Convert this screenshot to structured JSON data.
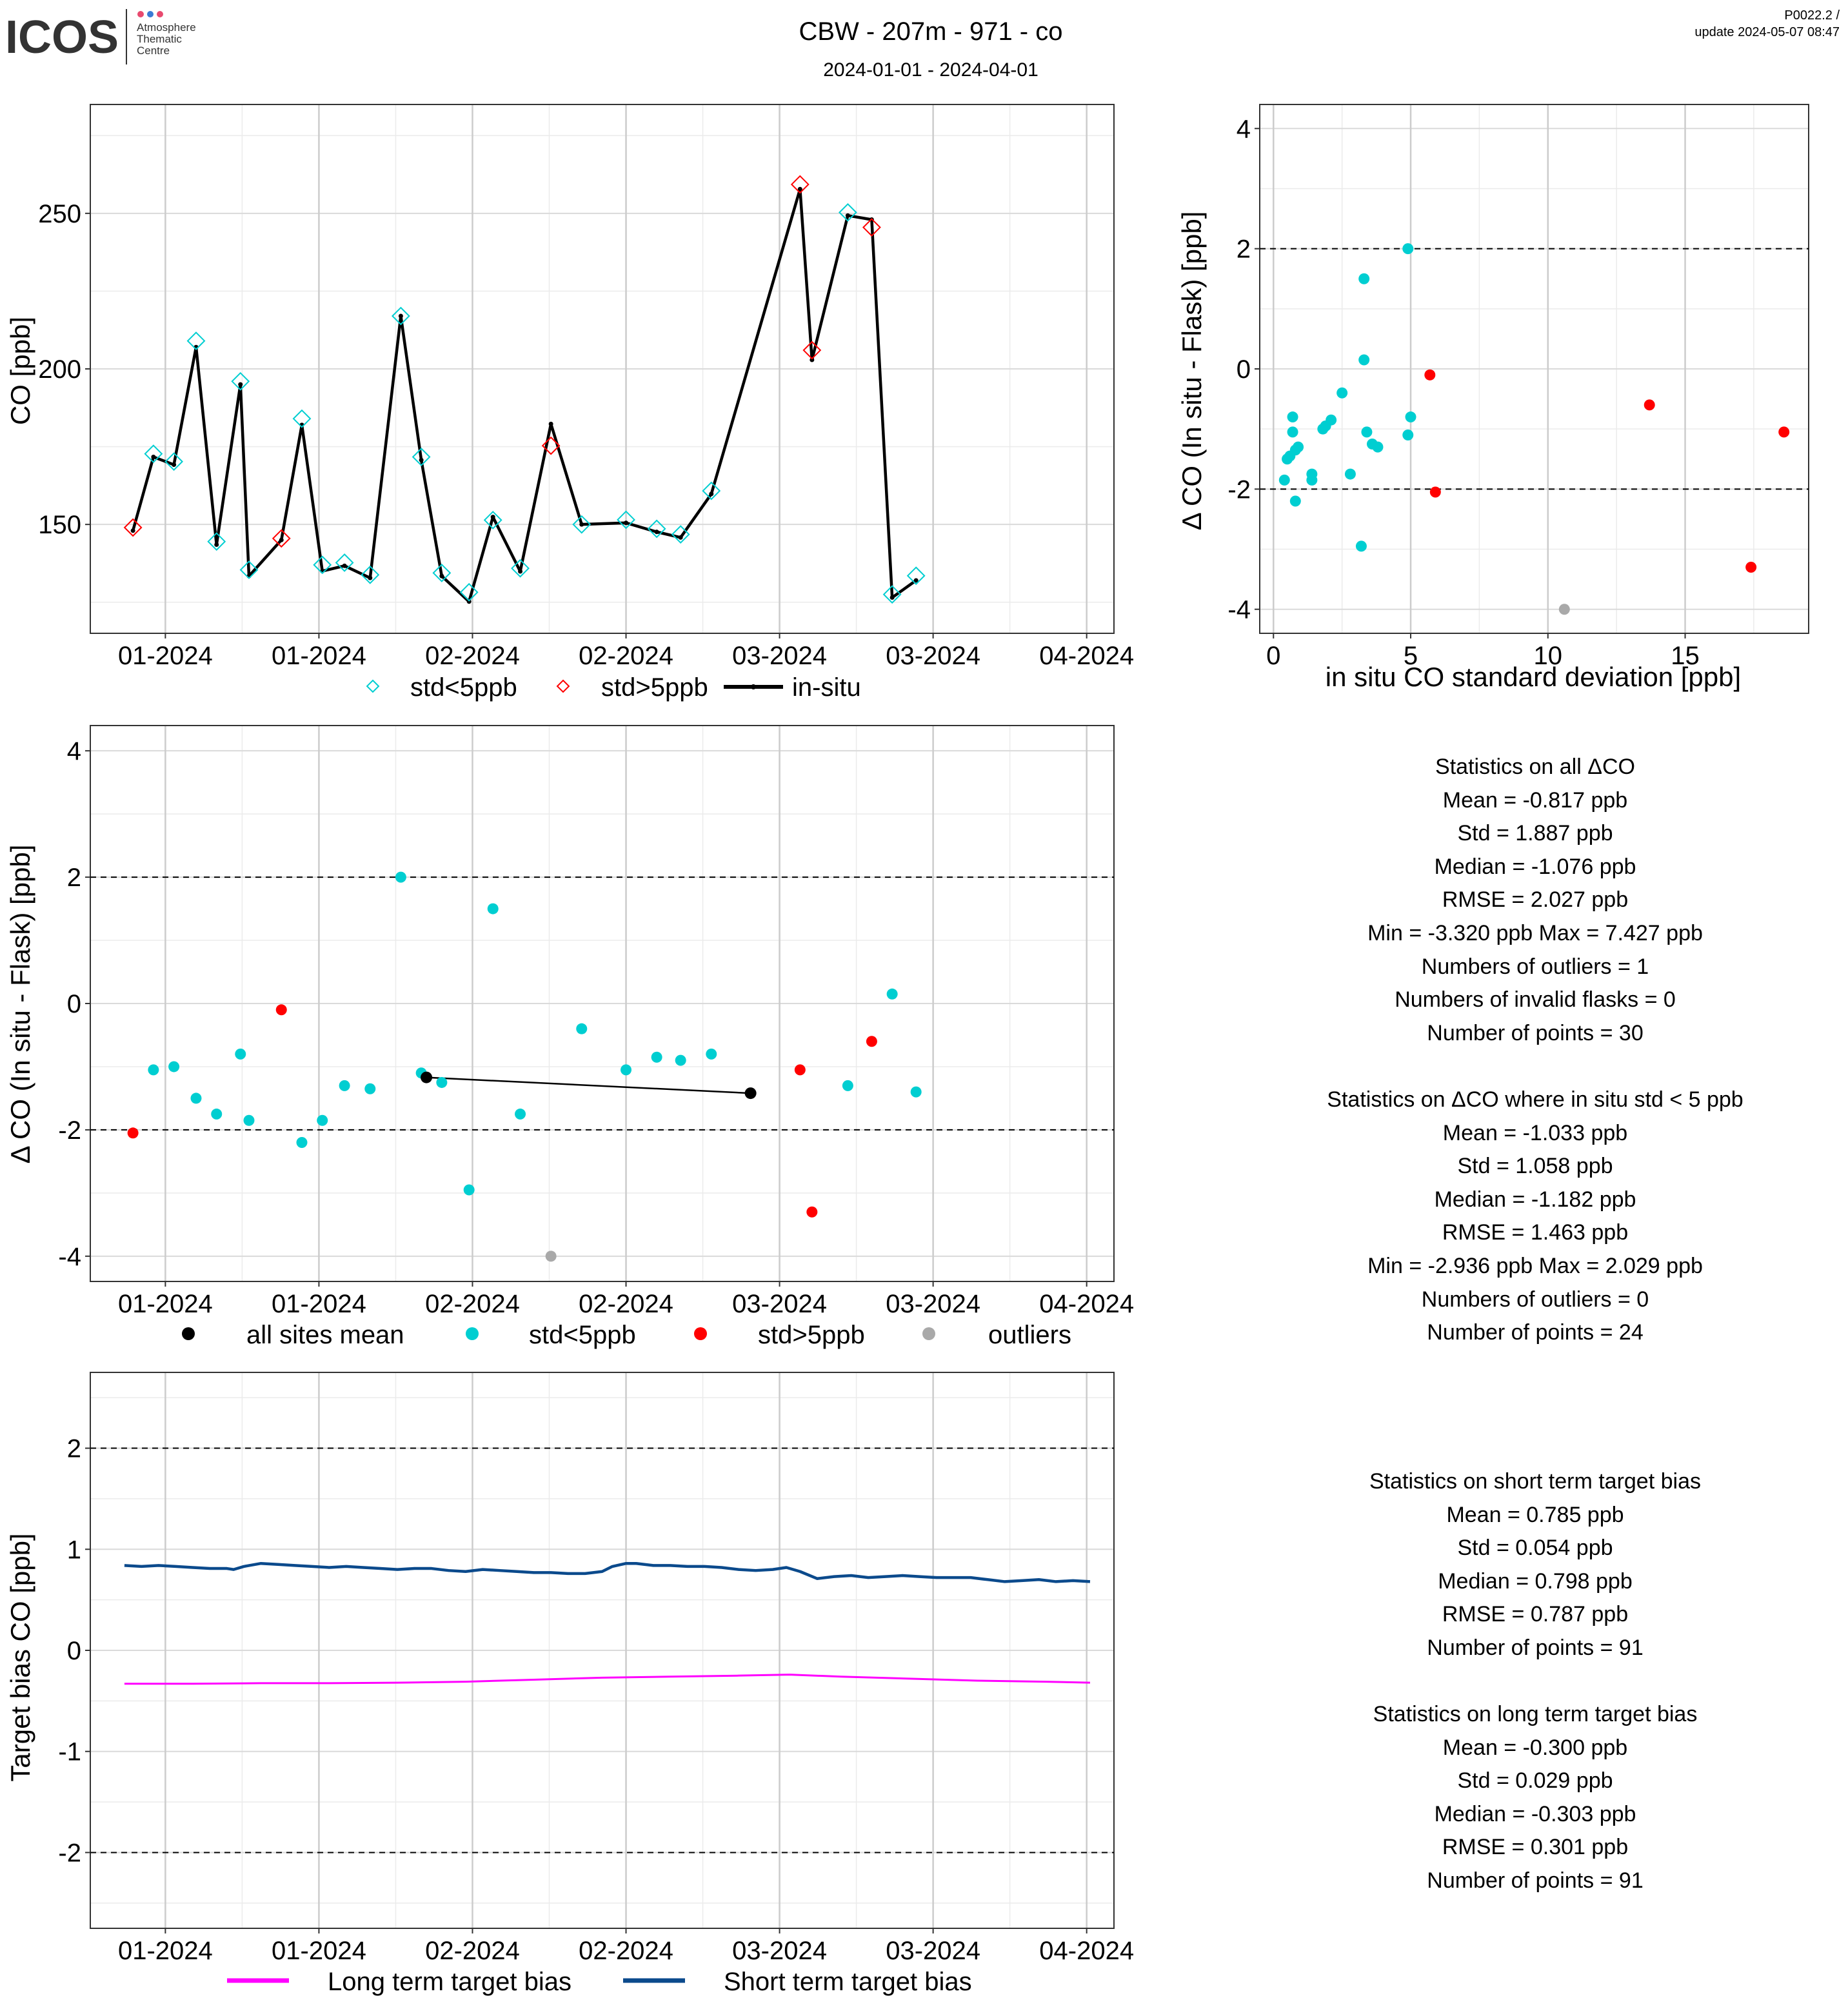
{
  "header": {
    "logo_text": "ICOS",
    "logo_sub": [
      "Atmosphere",
      "Thematic",
      "Centre"
    ],
    "title": "CBW - 207m - 971 - co",
    "subtitle": "2024-01-01 - 2024-04-01",
    "version": "P0022.2 /",
    "update": "update  2024-05-07 08:47"
  },
  "colors": {
    "cyan": "#00CED1",
    "red": "#FF0000",
    "grey": "#A9A9A9",
    "black": "#000000",
    "magenta": "#FF00FF",
    "navy": "#0B4A8C"
  },
  "chart_data": [
    {
      "id": "ts",
      "type": "line",
      "ylabel": "CO [ppb]",
      "xlim": [
        -10,
        290
      ],
      "ylim": [
        115,
        285
      ],
      "yticks": [
        150,
        200,
        250
      ],
      "xticks": [
        {
          "x": 12,
          "label": "01-2024"
        },
        {
          "x": 57,
          "label": "01-2024"
        },
        {
          "x": 102,
          "label": "02-2024"
        },
        {
          "x": 147,
          "label": "02-2024"
        },
        {
          "x": 192,
          "label": "03-2024"
        },
        {
          "x": 237,
          "label": "03-2024"
        },
        {
          "x": 282,
          "label": "04-2024"
        }
      ],
      "in_situ": [
        [
          2.5,
          148
        ],
        [
          8.5,
          171.7
        ],
        [
          14.5,
          169.2
        ],
        [
          21,
          207
        ],
        [
          27,
          143.5
        ],
        [
          34,
          195
        ],
        [
          36.5,
          133.4
        ],
        [
          46,
          145
        ],
        [
          52,
          182
        ],
        [
          58,
          135
        ],
        [
          64.5,
          136.7
        ],
        [
          72,
          132.8
        ],
        [
          81,
          217
        ],
        [
          87,
          170.7
        ],
        [
          93,
          133.4
        ],
        [
          101,
          125.2
        ],
        [
          108,
          152.4
        ],
        [
          116,
          134.9
        ],
        [
          125,
          182.3
        ],
        [
          134,
          150
        ],
        [
          147,
          150.5
        ],
        [
          156,
          147.6
        ],
        [
          163,
          145.8
        ],
        [
          172,
          159.8
        ],
        [
          198,
          257.8
        ],
        [
          201.5,
          202.9
        ],
        [
          212,
          249.3
        ],
        [
          219,
          248
        ],
        [
          225,
          126.5
        ],
        [
          232,
          132
        ]
      ],
      "flask_low": [
        [
          8.5,
          172.7
        ],
        [
          14.5,
          170.2
        ],
        [
          21,
          209
        ],
        [
          27,
          144.5
        ],
        [
          34,
          196
        ],
        [
          36.5,
          135.4
        ],
        [
          52,
          184
        ],
        [
          58,
          137
        ],
        [
          64.5,
          137.7
        ],
        [
          72,
          133.8
        ],
        [
          81,
          217
        ],
        [
          87,
          171.7
        ],
        [
          93,
          134.4
        ],
        [
          101,
          128.2
        ],
        [
          108,
          151.4
        ],
        [
          116,
          135.9
        ],
        [
          134,
          150
        ],
        [
          147,
          151.5
        ],
        [
          156,
          148.6
        ],
        [
          163,
          146.8
        ],
        [
          172,
          160.8
        ],
        [
          212,
          250.3
        ],
        [
          225,
          127.5
        ],
        [
          232,
          133.5
        ]
      ],
      "flask_high": [
        [
          2.5,
          149
        ],
        [
          46,
          145.5
        ],
        [
          125,
          175.3
        ],
        [
          198,
          259.3
        ],
        [
          201.5,
          206
        ],
        [
          219,
          245.5
        ]
      ],
      "legend": [
        "std<5ppb",
        "std>5ppb",
        "in-situ"
      ]
    },
    {
      "id": "scatter",
      "type": "scatter",
      "xlabel": "in situ CO standard deviation [ppb]",
      "ylabel": "Δ CO (In situ - Flask) [ppb]",
      "xlim": [
        -0.5,
        19.5
      ],
      "ylim": [
        -4.4,
        4.4
      ],
      "xticks": [
        0,
        5,
        10,
        15
      ],
      "yticks": [
        -4,
        -2,
        0,
        2,
        4
      ],
      "hlines": [
        -2,
        2
      ],
      "low": [
        [
          0.4,
          -1.85
        ],
        [
          0.5,
          -1.5
        ],
        [
          0.6,
          -1.45
        ],
        [
          0.7,
          -0.8
        ],
        [
          0.7,
          -1.05
        ],
        [
          0.8,
          -1.35
        ],
        [
          0.8,
          -2.2
        ],
        [
          0.9,
          -1.3
        ],
        [
          1.4,
          -1.85
        ],
        [
          1.4,
          -1.75
        ],
        [
          1.8,
          -1.0
        ],
        [
          1.9,
          -0.95
        ],
        [
          2.1,
          -0.85
        ],
        [
          2.5,
          -0.4
        ],
        [
          2.8,
          -1.75
        ],
        [
          3.2,
          -2.95
        ],
        [
          3.3,
          1.5
        ],
        [
          3.3,
          0.15
        ],
        [
          3.4,
          -1.05
        ],
        [
          3.6,
          -1.25
        ],
        [
          3.8,
          -1.3
        ],
        [
          4.9,
          2.0
        ],
        [
          4.9,
          -1.1
        ],
        [
          5.0,
          -0.8
        ]
      ],
      "high": [
        [
          5.7,
          -0.1
        ],
        [
          5.9,
          -2.05
        ],
        [
          13.7,
          -0.6
        ],
        [
          17.4,
          -3.3
        ],
        [
          18.6,
          -1.05
        ]
      ],
      "outliers": [
        [
          10.6,
          -4.0
        ]
      ]
    },
    {
      "id": "delta",
      "type": "scatter",
      "ylabel": "Δ CO (In situ - Flask) [ppb]",
      "xlim": [
        -10,
        290
      ],
      "ylim": [
        -4.4,
        4.4
      ],
      "yticks": [
        -4,
        -2,
        0,
        2,
        4
      ],
      "hlines": [
        -2,
        2
      ],
      "xticks": [
        {
          "x": 12,
          "label": "01-2024"
        },
        {
          "x": 57,
          "label": "01-2024"
        },
        {
          "x": 102,
          "label": "02-2024"
        },
        {
          "x": 147,
          "label": "02-2024"
        },
        {
          "x": 192,
          "label": "03-2024"
        },
        {
          "x": 237,
          "label": "03-2024"
        },
        {
          "x": 282,
          "label": "04-2024"
        }
      ],
      "low": [
        [
          8.5,
          -1.05
        ],
        [
          14.5,
          -1.0
        ],
        [
          21,
          -1.5
        ],
        [
          27,
          -1.75
        ],
        [
          34,
          -0.8
        ],
        [
          36.5,
          -1.85
        ],
        [
          52,
          -2.2
        ],
        [
          58,
          -1.85
        ],
        [
          64.5,
          -1.3
        ],
        [
          72,
          -1.35
        ],
        [
          81,
          2.0
        ],
        [
          87,
          -1.1
        ],
        [
          93,
          -1.25
        ],
        [
          101,
          -2.95
        ],
        [
          108,
          1.5
        ],
        [
          116,
          -1.75
        ],
        [
          134,
          -0.4
        ],
        [
          147,
          -1.05
        ],
        [
          156,
          -0.85
        ],
        [
          163,
          -0.9
        ],
        [
          172,
          -0.8
        ],
        [
          212,
          -1.3
        ],
        [
          225,
          0.15
        ],
        [
          232,
          -1.4
        ]
      ],
      "high": [
        [
          2.5,
          -2.05
        ],
        [
          46,
          -0.1
        ],
        [
          198,
          -1.05
        ],
        [
          201.5,
          -3.3
        ],
        [
          219,
          -0.6
        ]
      ],
      "outliers": [
        [
          125,
          -4.0
        ]
      ],
      "mean": [
        [
          88.5,
          -1.17
        ],
        [
          183.5,
          -1.42
        ]
      ],
      "legend": [
        "all sites mean",
        "std<5ppb",
        "std>5ppb",
        "outliers"
      ]
    },
    {
      "id": "bias",
      "type": "line",
      "ylabel": "Target bias CO [ppb]",
      "xlim": [
        -10,
        290
      ],
      "ylim": [
        -2.75,
        2.75
      ],
      "yticks": [
        -2,
        -1,
        0,
        1,
        2
      ],
      "hlines": [
        -2,
        2
      ],
      "xticks": [
        {
          "x": 12,
          "label": "01-2024"
        },
        {
          "x": 57,
          "label": "01-2024"
        },
        {
          "x": 102,
          "label": "02-2024"
        },
        {
          "x": 147,
          "label": "02-2024"
        },
        {
          "x": 192,
          "label": "03-2024"
        },
        {
          "x": 237,
          "label": "03-2024"
        },
        {
          "x": 282,
          "label": "04-2024"
        }
      ],
      "short_term": [
        [
          0,
          0.84
        ],
        [
          5,
          0.83
        ],
        [
          10,
          0.84
        ],
        [
          15,
          0.83
        ],
        [
          20,
          0.82
        ],
        [
          25,
          0.81
        ],
        [
          30,
          0.81
        ],
        [
          32,
          0.8
        ],
        [
          35,
          0.83
        ],
        [
          40,
          0.86
        ],
        [
          45,
          0.85
        ],
        [
          50,
          0.84
        ],
        [
          55,
          0.83
        ],
        [
          60,
          0.82
        ],
        [
          65,
          0.83
        ],
        [
          70,
          0.82
        ],
        [
          75,
          0.81
        ],
        [
          80,
          0.8
        ],
        [
          85,
          0.81
        ],
        [
          90,
          0.81
        ],
        [
          95,
          0.79
        ],
        [
          100,
          0.78
        ],
        [
          105,
          0.8
        ],
        [
          110,
          0.79
        ],
        [
          115,
          0.78
        ],
        [
          120,
          0.77
        ],
        [
          125,
          0.77
        ],
        [
          130,
          0.76
        ],
        [
          135,
          0.76
        ],
        [
          140,
          0.78
        ],
        [
          143,
          0.83
        ],
        [
          147,
          0.86
        ],
        [
          150,
          0.86
        ],
        [
          155,
          0.84
        ],
        [
          160,
          0.84
        ],
        [
          165,
          0.83
        ],
        [
          170,
          0.83
        ],
        [
          175,
          0.82
        ],
        [
          180,
          0.8
        ],
        [
          185,
          0.79
        ],
        [
          190,
          0.8
        ],
        [
          194,
          0.82
        ],
        [
          198,
          0.78
        ],
        [
          203,
          0.71
        ],
        [
          208,
          0.73
        ],
        [
          213,
          0.74
        ],
        [
          218,
          0.72
        ],
        [
          223,
          0.73
        ],
        [
          228,
          0.74
        ],
        [
          233,
          0.73
        ],
        [
          238,
          0.72
        ],
        [
          243,
          0.72
        ],
        [
          248,
          0.72
        ],
        [
          253,
          0.7
        ],
        [
          258,
          0.68
        ],
        [
          263,
          0.69
        ],
        [
          268,
          0.7
        ],
        [
          273,
          0.68
        ],
        [
          278,
          0.69
        ],
        [
          283,
          0.68
        ]
      ],
      "long_term": [
        [
          0,
          -0.33
        ],
        [
          20,
          -0.33
        ],
        [
          40,
          -0.325
        ],
        [
          60,
          -0.325
        ],
        [
          80,
          -0.32
        ],
        [
          100,
          -0.31
        ],
        [
          120,
          -0.29
        ],
        [
          140,
          -0.27
        ],
        [
          160,
          -0.26
        ],
        [
          180,
          -0.25
        ],
        [
          195,
          -0.24
        ],
        [
          210,
          -0.26
        ],
        [
          230,
          -0.28
        ],
        [
          250,
          -0.3
        ],
        [
          270,
          -0.31
        ],
        [
          283,
          -0.32
        ]
      ],
      "legend": [
        "Long term target bias",
        "Short term target bias"
      ]
    }
  ],
  "stats": {
    "all": [
      "Statistics on all ΔCO",
      "Mean =  -0.817 ppb",
      "Std =  1.887 ppb",
      "Median =  -1.076 ppb",
      "RMSE =  2.027 ppb",
      "Min =  -3.320 ppb Max =  7.427 ppb",
      "Numbers of outliers =  1",
      "Numbers of invalid flasks =  0",
      "Number of points =  30"
    ],
    "filtered": [
      "Statistics on ΔCO where in situ std < 5 ppb",
      "Mean =  -1.033 ppb",
      "Std =  1.058 ppb",
      "Median =  -1.182 ppb",
      "RMSE =  1.463 ppb",
      "Min =  -2.936 ppb Max =  2.029 ppb",
      "Numbers of outliers =  0",
      "Number of points =  24"
    ],
    "short": [
      "Statistics on short term target bias",
      "Mean =  0.785 ppb",
      "Std =  0.054 ppb",
      "Median =  0.798 ppb",
      "RMSE =  0.787 ppb",
      "Number of points =  91"
    ],
    "long": [
      "Statistics on long term target bias",
      "Mean =  -0.300 ppb",
      "Std =  0.029 ppb",
      "Median =  -0.303 ppb",
      "RMSE =  0.301 ppb",
      "Number of points =  91"
    ]
  }
}
